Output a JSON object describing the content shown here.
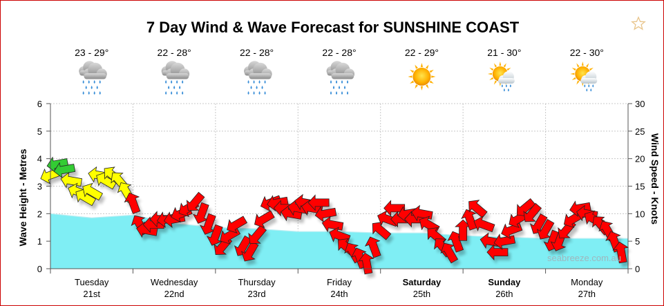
{
  "chart_data": {
    "type": "area",
    "title": "7 Day Wind & Wave Forecast for SUNSHINE COAST",
    "ylabel_left": "Wave Height - Metres",
    "ylabel_right": "Wind Speed - Knots",
    "ylim_left": [
      0,
      6
    ],
    "ylim_right": [
      0,
      30
    ],
    "yticks_left": [
      "0",
      "1",
      "2",
      "3",
      "4",
      "5",
      "6"
    ],
    "yticks_right": [
      "0",
      "5",
      "10",
      "15",
      "20",
      "25",
      "30"
    ],
    "grid": true,
    "watermark": "seabreeze.com.au",
    "days": [
      {
        "day": "Tuesday",
        "date": "21st",
        "temp": "23 - 29°",
        "weather": "rain-cloud-icon",
        "weekend": false
      },
      {
        "day": "Wednesday",
        "date": "22nd",
        "temp": "22 - 28°",
        "weather": "rain-cloud-icon",
        "weekend": false
      },
      {
        "day": "Thursday",
        "date": "23rd",
        "temp": "22 - 28°",
        "weather": "rain-cloud-icon",
        "weekend": false
      },
      {
        "day": "Friday",
        "date": "24th",
        "temp": "22 - 28°",
        "weather": "rain-cloud-icon",
        "weekend": false
      },
      {
        "day": "Saturday",
        "date": "25th",
        "temp": "22 - 29°",
        "weather": "sun-icon",
        "weekend": true
      },
      {
        "day": "Sunday",
        "date": "26th",
        "temp": "21 - 30°",
        "weather": "sun-shower-icon",
        "weekend": true
      },
      {
        "day": "Monday",
        "date": "27th",
        "temp": "22 - 30°",
        "weather": "sun-shower-icon",
        "weekend": false
      }
    ],
    "wave_series": {
      "name": "Wave Height",
      "color": "#7feef4",
      "x_days": [
        0,
        0.5,
        1,
        1.5,
        2,
        2.5,
        3,
        3.5,
        4,
        4.5,
        5,
        5.5,
        6,
        6.5,
        7
      ],
      "values": [
        2.0,
        1.85,
        1.95,
        1.65,
        1.5,
        1.45,
        1.35,
        1.35,
        1.3,
        1.3,
        1.2,
        1.15,
        1.1,
        1.1,
        1.1
      ]
    },
    "wind_series": {
      "name": "Wind Speed",
      "colors": {
        "light": "#33cc33",
        "moderate": "#ffff00",
        "strong": "#ff0000"
      },
      "x_days": [
        0,
        0.083,
        0.167,
        0.25,
        0.333,
        0.417,
        0.5,
        0.583,
        0.667,
        0.75,
        0.833,
        0.917,
        1,
        1.083,
        1.167,
        1.25,
        1.333,
        1.417,
        1.5,
        1.583,
        1.667,
        1.75,
        1.833,
        1.917,
        2,
        2.083,
        2.167,
        2.25,
        2.333,
        2.417,
        2.5,
        2.583,
        2.667,
        2.75,
        2.833,
        2.917,
        3,
        3.083,
        3.167,
        3.25,
        3.333,
        3.417,
        3.5,
        3.583,
        3.667,
        3.75,
        3.833,
        3.917,
        4,
        4.083,
        4.167,
        4.25,
        4.333,
        4.417,
        4.5,
        4.583,
        4.667,
        4.75,
        4.833,
        4.917,
        5,
        5.083,
        5.167,
        5.25,
        5.333,
        5.417,
        5.5,
        5.583,
        5.667,
        5.75,
        5.833,
        5.917,
        6,
        6.083,
        6.167,
        6.25,
        6.333,
        6.417,
        6.5,
        6.583,
        6.667,
        6.75,
        6.833,
        6.917
      ],
      "values": [
        17,
        19,
        18,
        16,
        14,
        13,
        14,
        17,
        16,
        17,
        16,
        14,
        12,
        8,
        7,
        8,
        9,
        9,
        9,
        10,
        11,
        12,
        10,
        8,
        6,
        4,
        6,
        8,
        4,
        3,
        6,
        9,
        12,
        12,
        11,
        10,
        11,
        12,
        11,
        12,
        10,
        8,
        6,
        4,
        3,
        2,
        1,
        4,
        7,
        9,
        11,
        9,
        10,
        9,
        10,
        8,
        6,
        4,
        3,
        5,
        7,
        9,
        11,
        8,
        5,
        3,
        5,
        7,
        9,
        11,
        10,
        8,
        7,
        5,
        5,
        7,
        9,
        11,
        10,
        9,
        8,
        7,
        5,
        3
      ],
      "directions_deg": [
        70,
        80,
        80,
        100,
        110,
        120,
        120,
        100,
        120,
        130,
        140,
        150,
        160,
        150,
        100,
        90,
        90,
        80,
        80,
        70,
        60,
        40,
        20,
        20,
        20,
        40,
        60,
        60,
        30,
        30,
        40,
        60,
        70,
        80,
        90,
        100,
        100,
        100,
        100,
        90,
        80,
        100,
        110,
        130,
        150,
        160,
        170,
        160,
        130,
        110,
        90,
        90,
        80,
        90,
        100,
        120,
        130,
        140,
        150,
        160,
        180,
        160,
        130,
        110,
        100,
        90,
        80,
        70,
        60,
        50,
        40,
        30,
        30,
        20,
        20,
        40,
        60,
        80,
        100,
        120,
        140,
        150,
        160,
        170
      ]
    }
  }
}
